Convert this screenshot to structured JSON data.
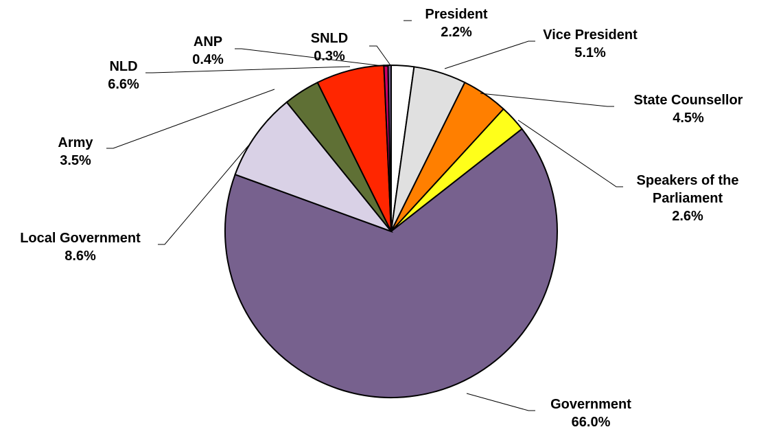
{
  "chart_data": {
    "type": "pie",
    "title": "",
    "slices": [
      {
        "label": [
          "President"
        ],
        "percent_text": "2.2%",
        "value": 2.2,
        "color": "#ffffff"
      },
      {
        "label": [
          "Vice President"
        ],
        "percent_text": "5.1%",
        "value": 5.1,
        "color": "#e0e0e0"
      },
      {
        "label": [
          "State Counsellor"
        ],
        "percent_text": "4.5%",
        "value": 4.5,
        "color": "#ff7f00"
      },
      {
        "label": [
          "Speakers of the",
          "Parliament"
        ],
        "percent_text": "2.6%",
        "value": 2.6,
        "color": "#ffff1a"
      },
      {
        "label": [
          "Government"
        ],
        "percent_text": "66.0%",
        "value": 66.0,
        "color": "#77618e"
      },
      {
        "label": [
          "Local Government"
        ],
        "percent_text": "8.6%",
        "value": 8.6,
        "color": "#d9d1e6"
      },
      {
        "label": [
          "Army"
        ],
        "percent_text": "3.5%",
        "value": 3.5,
        "color": "#5f7035"
      },
      {
        "label": [
          "NLD"
        ],
        "percent_text": "6.6%",
        "value": 6.6,
        "color": "#ff2600"
      },
      {
        "label": [
          "ANP"
        ],
        "percent_text": "0.4%",
        "value": 0.4,
        "color": "#cc0066"
      },
      {
        "label": [
          "SNLD"
        ],
        "percent_text": "0.3%",
        "value": 0.3,
        "color": "#7a6a9c"
      }
    ]
  }
}
